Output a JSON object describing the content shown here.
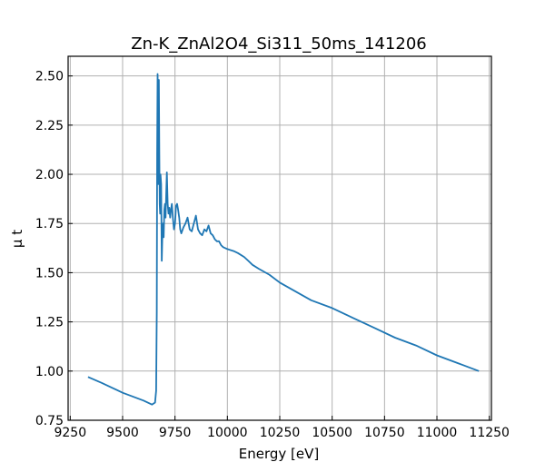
{
  "chart_data": {
    "type": "line",
    "title": "Zn-K_ZnAl2O4_Si311_50ms_141206",
    "xlabel": "Energy [eV]",
    "ylabel": "μ t",
    "xlim": [
      9240,
      11260
    ],
    "ylim": [
      0.75,
      2.6
    ],
    "xticks": [
      9250,
      9500,
      9750,
      10000,
      10250,
      10500,
      10750,
      11000,
      11250
    ],
    "yticks": [
      0.75,
      1.0,
      1.25,
      1.5,
      1.75,
      2.0,
      2.25,
      2.5
    ],
    "ytick_labels": [
      "0.75",
      "1.00",
      "1.25",
      "1.50",
      "1.75",
      "2.00",
      "2.25",
      "2.50"
    ],
    "grid": true,
    "color": "#1f77b4",
    "series": [
      {
        "x": [
          9335,
          9400,
          9500,
          9600,
          9640,
          9655,
          9660,
          9663,
          9665,
          9667,
          9669,
          9671,
          9673,
          9675,
          9677,
          9679,
          9681,
          9684,
          9687,
          9690,
          9693,
          9696,
          9699,
          9702,
          9705,
          9708,
          9711,
          9715,
          9719,
          9723,
          9727,
          9731,
          9735,
          9740,
          9745,
          9750,
          9755,
          9760,
          9765,
          9770,
          9775,
          9780,
          9790,
          9800,
          9810,
          9820,
          9830,
          9840,
          9850,
          9860,
          9870,
          9880,
          9890,
          9900,
          9910,
          9920,
          9930,
          9940,
          9950,
          9960,
          9970,
          9980,
          10000,
          10030,
          10050,
          10080,
          10100,
          10120,
          10150,
          10200,
          10250,
          10300,
          10400,
          10500,
          10600,
          10700,
          10800,
          10900,
          11000,
          11100,
          11200
        ],
        "y": [
          0.97,
          0.94,
          0.89,
          0.85,
          0.83,
          0.84,
          0.9,
          1.3,
          2.1,
          2.51,
          2.3,
          1.95,
          2.48,
          2.1,
          1.85,
          1.8,
          2.0,
          1.95,
          1.56,
          1.7,
          1.75,
          1.68,
          1.82,
          1.85,
          1.78,
          1.9,
          2.01,
          1.85,
          1.8,
          1.83,
          1.78,
          1.82,
          1.85,
          1.78,
          1.72,
          1.75,
          1.84,
          1.85,
          1.82,
          1.78,
          1.72,
          1.7,
          1.73,
          1.75,
          1.78,
          1.72,
          1.71,
          1.75,
          1.79,
          1.72,
          1.7,
          1.69,
          1.72,
          1.71,
          1.74,
          1.7,
          1.69,
          1.67,
          1.66,
          1.66,
          1.64,
          1.63,
          1.62,
          1.61,
          1.6,
          1.58,
          1.56,
          1.54,
          1.52,
          1.49,
          1.45,
          1.42,
          1.36,
          1.32,
          1.27,
          1.22,
          1.17,
          1.13,
          1.08,
          1.04,
          1.0
        ]
      }
    ]
  }
}
